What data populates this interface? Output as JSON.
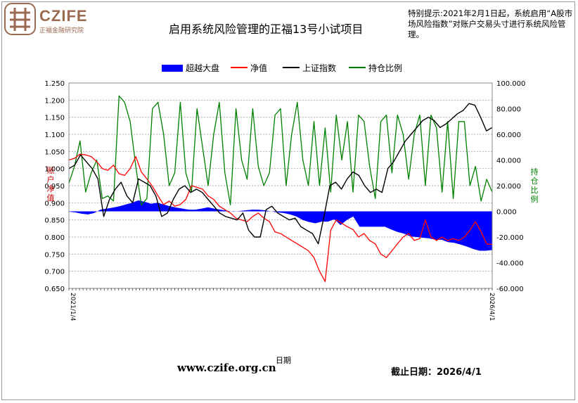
{
  "header": {
    "logo_text": "CZIFE",
    "logo_subtitle": "正福金融研究院",
    "notice": "特别提示:2021年2月1日起，系统启用“A股市场风险指数”对账户交易头寸进行系统风险管理。"
  },
  "footer": {
    "url": "www.czife.org.cn",
    "date_label": "截止日期：2026/4/1"
  },
  "chart_data": {
    "type": "line",
    "title": "启用系统风险管理的正福13号小试项目",
    "xlabel": "日期",
    "ylabel_left": "账户净值",
    "ylabel_right": "持仓比例",
    "ylim_left": [
      0.65,
      1.25
    ],
    "ylim_right": [
      -60,
      100
    ],
    "yticks_left": [
      "1.250",
      "1.200",
      "1.150",
      "1.100",
      "1.050",
      "1.000",
      "0.950",
      "0.900",
      "0.850",
      "0.800",
      "0.750",
      "0.700",
      "0.650"
    ],
    "yticks_right": [
      "100.000",
      "80.000",
      "60.000",
      "40.000",
      "20.000",
      "0.000",
      "-20.000",
      "-40.000",
      "-60.000"
    ],
    "grid": true,
    "legend_position": "top",
    "x_start": "2021/1/4",
    "x_end": "2026/4/1",
    "colors": {
      "excess": "#0000ff",
      "nav": "#ff0000",
      "index": "#000000",
      "position": "#008000",
      "left_axis_label": "#cc0000",
      "right_axis_label": "#008000"
    },
    "series": [
      {
        "name": "超越大盘",
        "axis": "left",
        "style": "area-from-0.875",
        "values": [
          0.874,
          0.872,
          0.868,
          0.866,
          0.87,
          0.88,
          0.883,
          0.886,
          0.89,
          0.895,
          0.9,
          0.907,
          0.903,
          0.897,
          0.9,
          0.895,
          0.89,
          0.886,
          0.883,
          0.88,
          0.88,
          0.883,
          0.887,
          0.883,
          0.88,
          0.877,
          0.874,
          0.876,
          0.878,
          0.88,
          0.88,
          0.878,
          0.875,
          0.872,
          0.87,
          0.866,
          0.86,
          0.85,
          0.844,
          0.84,
          0.845,
          0.845,
          0.852,
          0.835,
          0.85,
          0.86,
          0.83,
          0.83,
          0.83,
          0.83,
          0.83,
          0.822,
          0.815,
          0.81,
          0.802,
          0.8,
          0.798,
          0.796,
          0.792,
          0.792,
          0.785,
          0.783,
          0.778,
          0.772,
          0.765,
          0.76,
          0.76,
          0.762
        ]
      },
      {
        "name": "净值",
        "axis": "left",
        "values": [
          1.025,
          1.03,
          1.042,
          1.04,
          1.035,
          1.02,
          1.0,
          0.995,
          1.01,
          0.985,
          0.98,
          1.0,
          1.035,
          0.99,
          0.97,
          0.948,
          0.92,
          0.895,
          0.905,
          0.89,
          0.895,
          0.91,
          0.95,
          0.945,
          0.94,
          0.92,
          0.91,
          0.89,
          0.88,
          0.87,
          0.855,
          0.85,
          0.845,
          0.86,
          0.87,
          0.855,
          0.845,
          0.815,
          0.81,
          0.8,
          0.79,
          0.78,
          0.77,
          0.76,
          0.74,
          0.7,
          0.67,
          0.82,
          0.85,
          0.84,
          0.83,
          0.822,
          0.8,
          0.81,
          0.79,
          0.78,
          0.75,
          0.74,
          0.76,
          0.78,
          0.8,
          0.81,
          0.79,
          0.795,
          0.85,
          0.8,
          0.79,
          0.8,
          0.79,
          0.795,
          0.79,
          0.8,
          0.82,
          0.845,
          0.815,
          0.78,
          0.778
        ]
      },
      {
        "name": "上证指数",
        "axis": "left",
        "values": [
          1.0,
          1.01,
          1.04,
          1.02,
          1.0,
          0.97,
          0.86,
          0.91,
          0.94,
          0.96,
          0.92,
          0.9,
          0.97,
          0.96,
          0.95,
          0.92,
          0.86,
          0.87,
          0.91,
          0.94,
          0.95,
          0.93,
          0.94,
          0.93,
          0.91,
          0.89,
          0.87,
          0.86,
          0.855,
          0.85,
          0.87,
          0.82,
          0.8,
          0.8,
          0.88,
          0.89,
          0.87,
          0.86,
          0.85,
          0.855,
          0.83,
          0.82,
          0.81,
          0.78,
          0.86,
          0.95,
          0.96,
          0.94,
          0.97,
          0.99,
          0.98,
          0.95,
          0.93,
          0.94,
          0.93,
          1.0,
          1.02,
          1.05,
          1.08,
          1.1,
          1.12,
          1.14,
          1.15,
          1.14,
          1.12,
          1.13,
          1.145,
          1.16,
          1.17,
          1.19,
          1.185,
          1.15,
          1.11,
          1.12
        ]
      },
      {
        "name": "持仓比例",
        "axis": "right",
        "values": [
          22,
          35,
          55,
          15,
          30,
          40,
          10,
          12,
          8,
          90,
          85,
          70,
          35,
          5,
          10,
          80,
          85,
          60,
          20,
          30,
          85,
          30,
          15,
          80,
          50,
          20,
          60,
          85,
          30,
          5,
          80,
          40,
          25,
          80,
          35,
          20,
          30,
          75,
          80,
          20,
          60,
          85,
          40,
          20,
          70,
          20,
          65,
          15,
          75,
          40,
          70,
          15,
          75,
          70,
          35,
          10,
          70,
          75,
          30,
          75,
          60,
          25,
          60,
          75,
          20,
          75,
          65,
          15,
          70,
          10,
          70,
          70,
          20,
          35,
          8,
          25,
          15
        ]
      }
    ]
  }
}
